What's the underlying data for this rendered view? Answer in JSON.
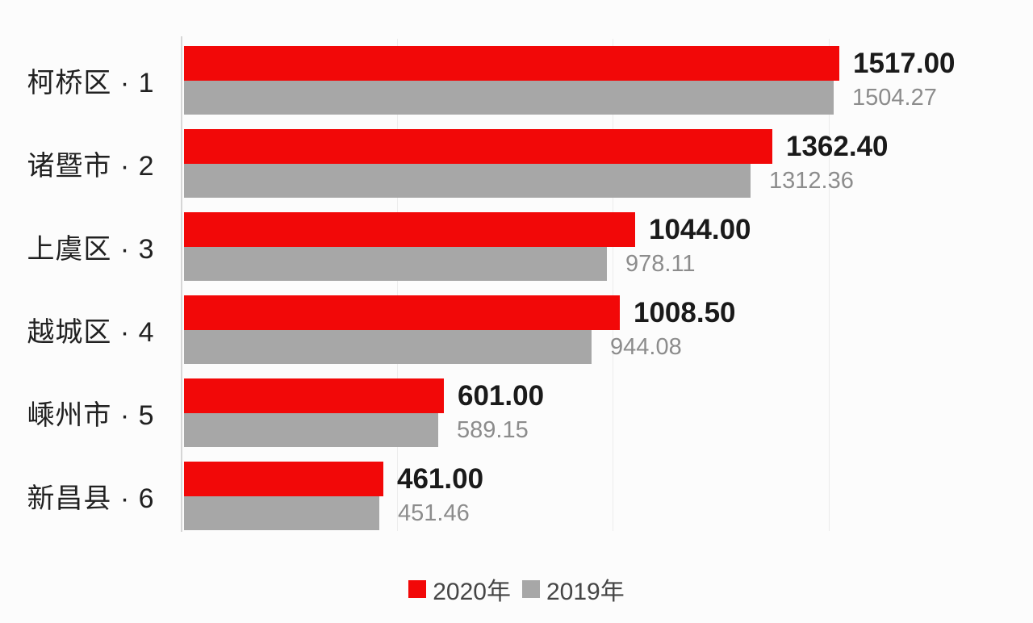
{
  "chart_data": {
    "type": "bar",
    "orientation": "horizontal",
    "title": "",
    "xlabel": "",
    "ylabel": "",
    "categories": [
      "柯桥区 · 1",
      "诸暨市 · 2",
      "上虞区 · 3",
      "越城区 · 4",
      "嵊州市 · 5",
      "新昌县 · 6"
    ],
    "series": [
      {
        "name": "2020年",
        "color": "#f20808",
        "values": [
          1517.0,
          1362.4,
          1044.0,
          1008.5,
          601.0,
          461.0
        ],
        "value_labels": [
          "1517.00",
          "1362.40",
          "1044.00",
          "1008.50",
          "601.00",
          "461.00"
        ]
      },
      {
        "name": "2019年",
        "color": "#a7a7a7",
        "values": [
          1504.27,
          1312.36,
          978.11,
          944.08,
          589.15,
          451.46
        ],
        "value_labels": [
          "1504.27",
          "1312.36",
          "978.11",
          "944.08",
          "589.15",
          "451.46"
        ]
      }
    ],
    "xlim": [
      0,
      1560
    ],
    "gridline_values": [
      500,
      1000,
      1500
    ],
    "grid": true,
    "legend_position": "bottom"
  },
  "legend": {
    "items": [
      {
        "label": "2020年",
        "color": "#f20808"
      },
      {
        "label": "2019年",
        "color": "#a7a7a7"
      }
    ]
  },
  "colors": {
    "series_2020": "#f20808",
    "series_2019": "#a7a7a7",
    "value_label_primary": "#1a1a1a",
    "value_label_secondary": "#8c8c8c",
    "category_label": "#212121",
    "gridline": "#ececec",
    "axis_line": "#d6d6d6",
    "background": "#fcfcfc"
  }
}
